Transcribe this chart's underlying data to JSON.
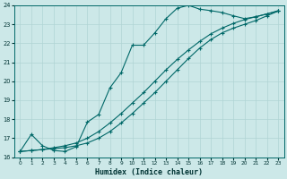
{
  "xlabel": "Humidex (Indice chaleur)",
  "bg_color": "#cce8e8",
  "grid_color": "#b0d4d4",
  "line_color": "#006868",
  "xlim": [
    -0.5,
    23.5
  ],
  "ylim": [
    16,
    24
  ],
  "xticks": [
    0,
    1,
    2,
    3,
    4,
    5,
    6,
    7,
    8,
    9,
    10,
    11,
    12,
    13,
    14,
    15,
    16,
    17,
    18,
    19,
    20,
    21,
    22,
    23
  ],
  "yticks": [
    16,
    17,
    18,
    19,
    20,
    21,
    22,
    23,
    24
  ],
  "lx1": [
    0,
    1,
    2,
    3,
    4,
    5,
    6,
    7,
    8,
    9,
    10,
    11,
    12,
    13,
    14,
    15,
    16,
    17,
    18,
    19,
    20,
    21,
    22,
    23
  ],
  "ly1": [
    16.3,
    17.2,
    16.6,
    16.35,
    16.3,
    16.55,
    17.85,
    18.25,
    19.65,
    20.45,
    21.9,
    21.9,
    22.55,
    23.3,
    23.85,
    24.0,
    23.8,
    23.72,
    23.62,
    23.45,
    23.3,
    23.4,
    23.55,
    23.72
  ],
  "lx2": [
    0,
    1,
    2,
    3,
    4,
    5,
    6,
    7,
    8,
    9,
    10,
    11,
    12,
    13,
    14,
    15,
    16,
    17,
    18,
    19,
    20,
    21,
    22,
    23
  ],
  "ly2": [
    16.3,
    16.35,
    16.4,
    16.45,
    16.5,
    16.6,
    16.75,
    17.0,
    17.35,
    17.8,
    18.3,
    18.85,
    19.4,
    20.0,
    20.6,
    21.2,
    21.75,
    22.2,
    22.55,
    22.8,
    23.0,
    23.2,
    23.45,
    23.7
  ],
  "lx3": [
    0,
    1,
    2,
    3,
    4,
    5,
    6,
    7,
    8,
    9,
    10,
    11,
    12,
    13,
    14,
    15,
    16,
    17,
    18,
    19,
    20,
    21,
    22,
    23
  ],
  "ly3": [
    16.3,
    16.35,
    16.4,
    16.5,
    16.6,
    16.75,
    17.0,
    17.35,
    17.8,
    18.3,
    18.85,
    19.4,
    20.0,
    20.6,
    21.15,
    21.65,
    22.1,
    22.5,
    22.8,
    23.05,
    23.25,
    23.4,
    23.55,
    23.7
  ]
}
